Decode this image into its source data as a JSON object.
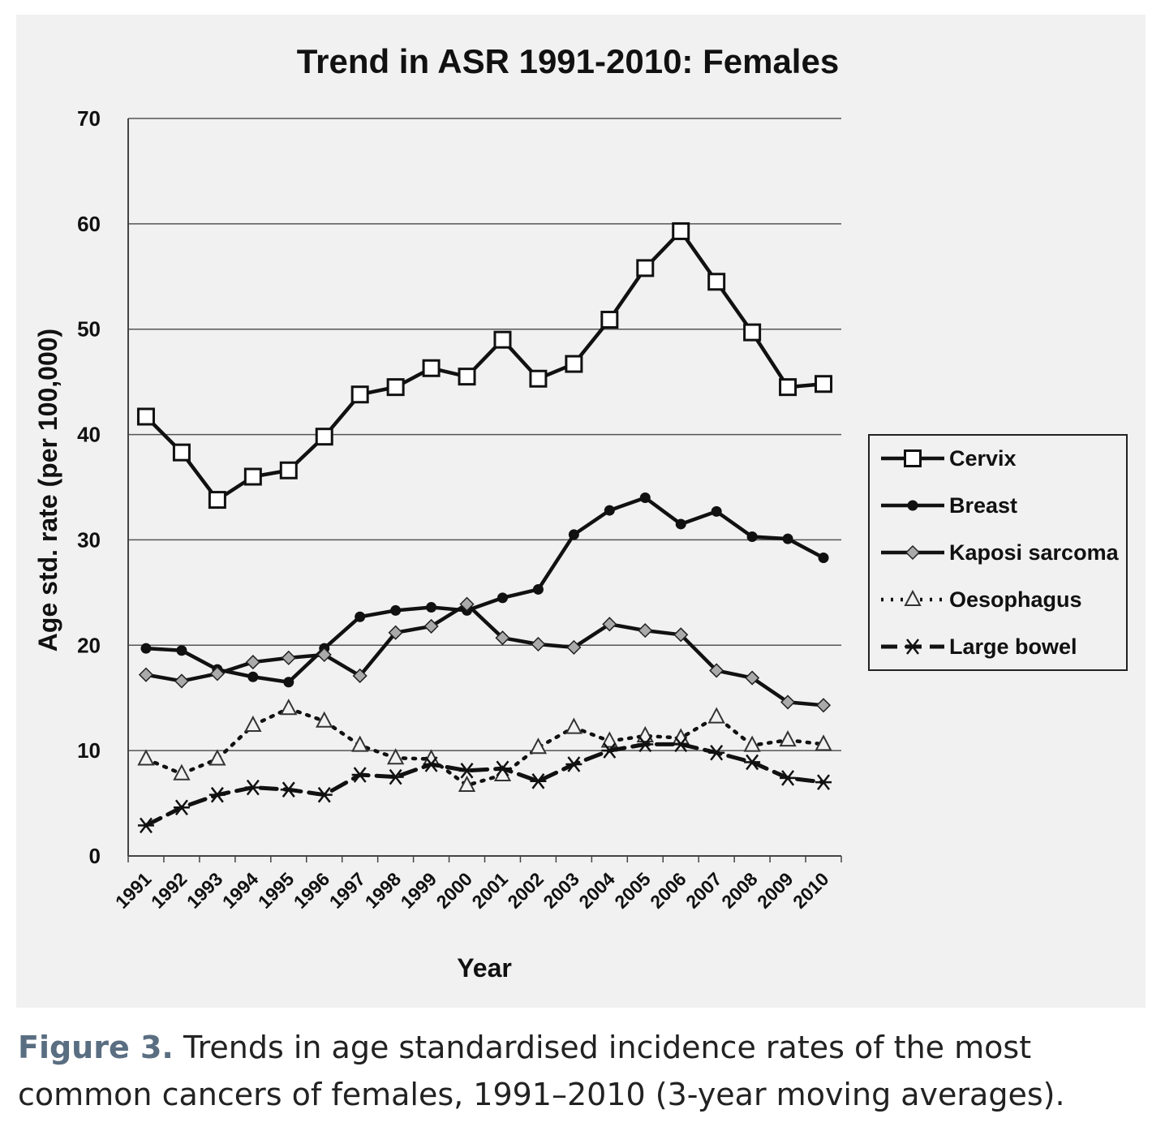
{
  "chart_data": {
    "type": "line",
    "title": "Trend in ASR 1991-2010: Females",
    "xlabel": "Year",
    "ylabel": "Age std. rate (per 100,000)",
    "ylim": [
      0,
      70
    ],
    "yticks": [
      "0",
      "10",
      "20",
      "30",
      "40",
      "50",
      "60",
      "70"
    ],
    "grid": "horizontal",
    "legend_position": "right",
    "categories": [
      "1991",
      "1992",
      "1993",
      "1994",
      "1995",
      "1996",
      "1997",
      "1998",
      "1999",
      "2000",
      "2001",
      "2002",
      "2003",
      "2004",
      "2005",
      "2006",
      "2007",
      "2008",
      "2009",
      "2010"
    ],
    "series": [
      {
        "name": "Cervix",
        "marker": "open-square",
        "line": "solid",
        "values": [
          41.7,
          38.3,
          33.8,
          36.0,
          36.6,
          39.8,
          43.8,
          44.5,
          46.3,
          45.5,
          49.0,
          45.3,
          46.7,
          50.9,
          55.8,
          59.3,
          54.5,
          49.7,
          44.5,
          44.8
        ]
      },
      {
        "name": "Breast",
        "marker": "filled-circle",
        "line": "solid",
        "values": [
          19.7,
          19.5,
          17.7,
          17.0,
          16.5,
          19.7,
          22.7,
          23.3,
          23.6,
          23.3,
          24.5,
          25.3,
          30.5,
          32.8,
          34.0,
          31.5,
          32.7,
          30.3,
          30.1,
          28.3
        ]
      },
      {
        "name": "Kaposi sarcoma",
        "marker": "gray-diamond",
        "line": "solid",
        "values": [
          17.2,
          16.6,
          17.3,
          18.4,
          18.8,
          19.1,
          17.1,
          21.2,
          21.8,
          23.9,
          20.7,
          20.1,
          19.8,
          22.0,
          21.4,
          21.0,
          17.6,
          16.9,
          14.6,
          14.3
        ]
      },
      {
        "name": "Oesophagus",
        "marker": "open-triangle",
        "line": "dotted",
        "values": [
          9.2,
          7.8,
          9.2,
          12.4,
          14.0,
          12.8,
          10.5,
          9.3,
          9.2,
          6.7,
          7.7,
          10.3,
          12.2,
          10.9,
          11.4,
          11.2,
          13.2,
          10.5,
          11.0,
          10.6
        ]
      },
      {
        "name": "Large bowel",
        "marker": "asterisk",
        "line": "dashed",
        "values": [
          2.9,
          4.6,
          5.8,
          6.5,
          6.3,
          5.8,
          7.7,
          7.5,
          8.7,
          8.1,
          8.3,
          7.1,
          8.7,
          10.0,
          10.6,
          10.6,
          9.8,
          8.9,
          7.4,
          7.0
        ]
      }
    ]
  },
  "caption": {
    "label": "Figure 3.",
    "line1": " Trends in age standardised incidence rates of the most",
    "line2": "common cancers of females, 1991–2010 (3-year moving averages)."
  }
}
